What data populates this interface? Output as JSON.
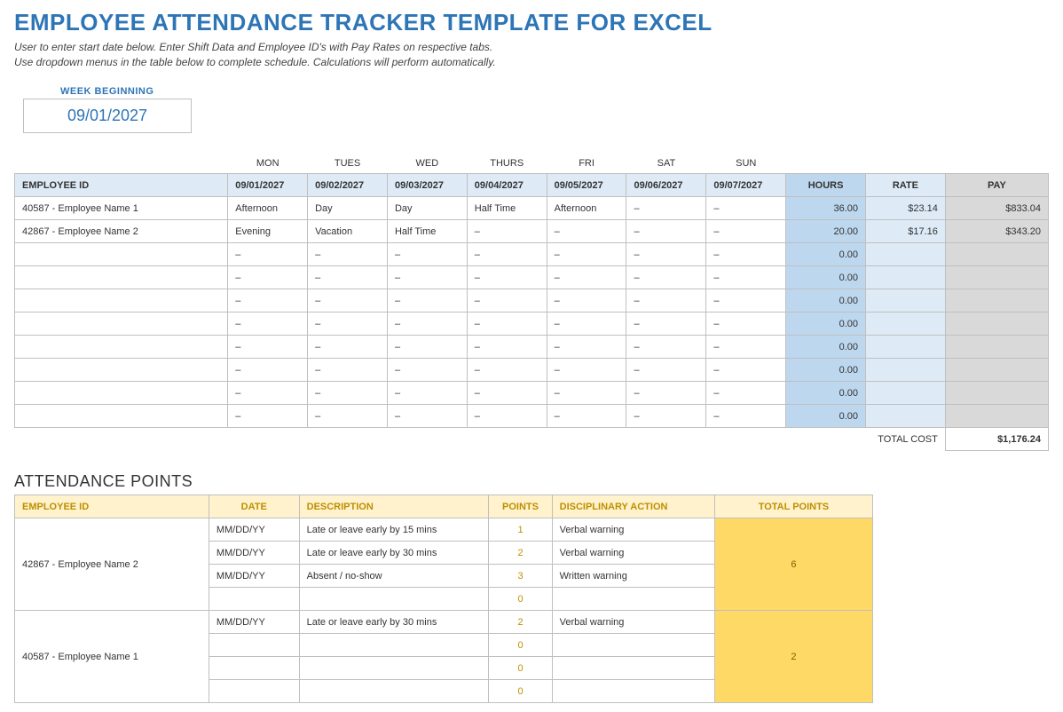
{
  "title": "EMPLOYEE ATTENDANCE TRACKER TEMPLATE FOR EXCEL",
  "subtitle_line1": "User to enter start date below.  Enter Shift Data and Employee ID's with Pay Rates on respective tabs.",
  "subtitle_line2": "Use dropdown menus in the table below to complete schedule. Calculations will perform automatically.",
  "week_begin_label": "WEEK BEGINNING",
  "week_begin_value": "09/01/2027",
  "day_labels": [
    "MON",
    "TUES",
    "WED",
    "THURS",
    "FRI",
    "SAT",
    "SUN"
  ],
  "schedule_headers": {
    "employee_id": "EMPLOYEE ID",
    "dates": [
      "09/01/2027",
      "09/02/2027",
      "09/03/2027",
      "09/04/2027",
      "09/05/2027",
      "09/06/2027",
      "09/07/2027"
    ],
    "hours": "HOURS",
    "rate": "RATE",
    "pay": "PAY"
  },
  "schedule_rows": [
    {
      "emp": "40587 - Employee Name 1",
      "days": [
        "Afternoon",
        "Day",
        "Day",
        "Half Time",
        "Afternoon",
        "–",
        "–"
      ],
      "hours": "36.00",
      "rate": "$23.14",
      "pay": "$833.04"
    },
    {
      "emp": "42867 - Employee Name 2",
      "days": [
        "Evening",
        "Vacation",
        "Half Time",
        "–",
        "–",
        "–",
        "–"
      ],
      "hours": "20.00",
      "rate": "$17.16",
      "pay": "$343.20"
    },
    {
      "emp": "",
      "days": [
        "–",
        "–",
        "–",
        "–",
        "–",
        "–",
        "–"
      ],
      "hours": "0.00",
      "rate": "",
      "pay": ""
    },
    {
      "emp": "",
      "days": [
        "–",
        "–",
        "–",
        "–",
        "–",
        "–",
        "–"
      ],
      "hours": "0.00",
      "rate": "",
      "pay": ""
    },
    {
      "emp": "",
      "days": [
        "–",
        "–",
        "–",
        "–",
        "–",
        "–",
        "–"
      ],
      "hours": "0.00",
      "rate": "",
      "pay": ""
    },
    {
      "emp": "",
      "days": [
        "–",
        "–",
        "–",
        "–",
        "–",
        "–",
        "–"
      ],
      "hours": "0.00",
      "rate": "",
      "pay": ""
    },
    {
      "emp": "",
      "days": [
        "–",
        "–",
        "–",
        "–",
        "–",
        "–",
        "–"
      ],
      "hours": "0.00",
      "rate": "",
      "pay": ""
    },
    {
      "emp": "",
      "days": [
        "–",
        "–",
        "–",
        "–",
        "–",
        "–",
        "–"
      ],
      "hours": "0.00",
      "rate": "",
      "pay": ""
    },
    {
      "emp": "",
      "days": [
        "–",
        "–",
        "–",
        "–",
        "–",
        "–",
        "–"
      ],
      "hours": "0.00",
      "rate": "",
      "pay": ""
    },
    {
      "emp": "",
      "days": [
        "–",
        "–",
        "–",
        "–",
        "–",
        "–",
        "–"
      ],
      "hours": "0.00",
      "rate": "",
      "pay": ""
    }
  ],
  "total_cost_label": "TOTAL COST",
  "total_cost_value": "$1,176.24",
  "points_title": "ATTENDANCE POINTS",
  "points_headers": {
    "employee_id": "EMPLOYEE ID",
    "date": "DATE",
    "description": "DESCRIPTION",
    "points": "POINTS",
    "action": "DISCIPLINARY ACTION",
    "total": "TOTAL POINTS"
  },
  "points_groups": [
    {
      "emp": "42867 - Employee Name 2",
      "total": "6",
      "rows": [
        {
          "date": "MM/DD/YY",
          "desc": "Late or leave early by 15 mins",
          "points": "1",
          "action": "Verbal warning"
        },
        {
          "date": "MM/DD/YY",
          "desc": "Late or leave early by 30 mins",
          "points": "2",
          "action": "Verbal warning"
        },
        {
          "date": "MM/DD/YY",
          "desc": "Absent / no-show",
          "points": "3",
          "action": "Written warning"
        },
        {
          "date": "",
          "desc": "",
          "points": "0",
          "action": ""
        }
      ]
    },
    {
      "emp": "40587 - Employee Name 1",
      "total": "2",
      "rows": [
        {
          "date": "MM/DD/YY",
          "desc": "Late or leave early by 30 mins",
          "points": "2",
          "action": "Verbal warning"
        },
        {
          "date": "",
          "desc": "",
          "points": "0",
          "action": ""
        },
        {
          "date": "",
          "desc": "",
          "points": "0",
          "action": ""
        },
        {
          "date": "",
          "desc": "",
          "points": "0",
          "action": ""
        }
      ]
    }
  ],
  "colors": {
    "title": "#2e75b6",
    "schedule_header_bg": "#deebf7",
    "hours_bg": "#bdd7ee",
    "pay_bg": "#d9d9d9",
    "points_header_bg": "#fff2cc",
    "points_header_text": "#bf8f00",
    "points_total_bg": "#ffd966",
    "border": "#bfbfbf"
  }
}
